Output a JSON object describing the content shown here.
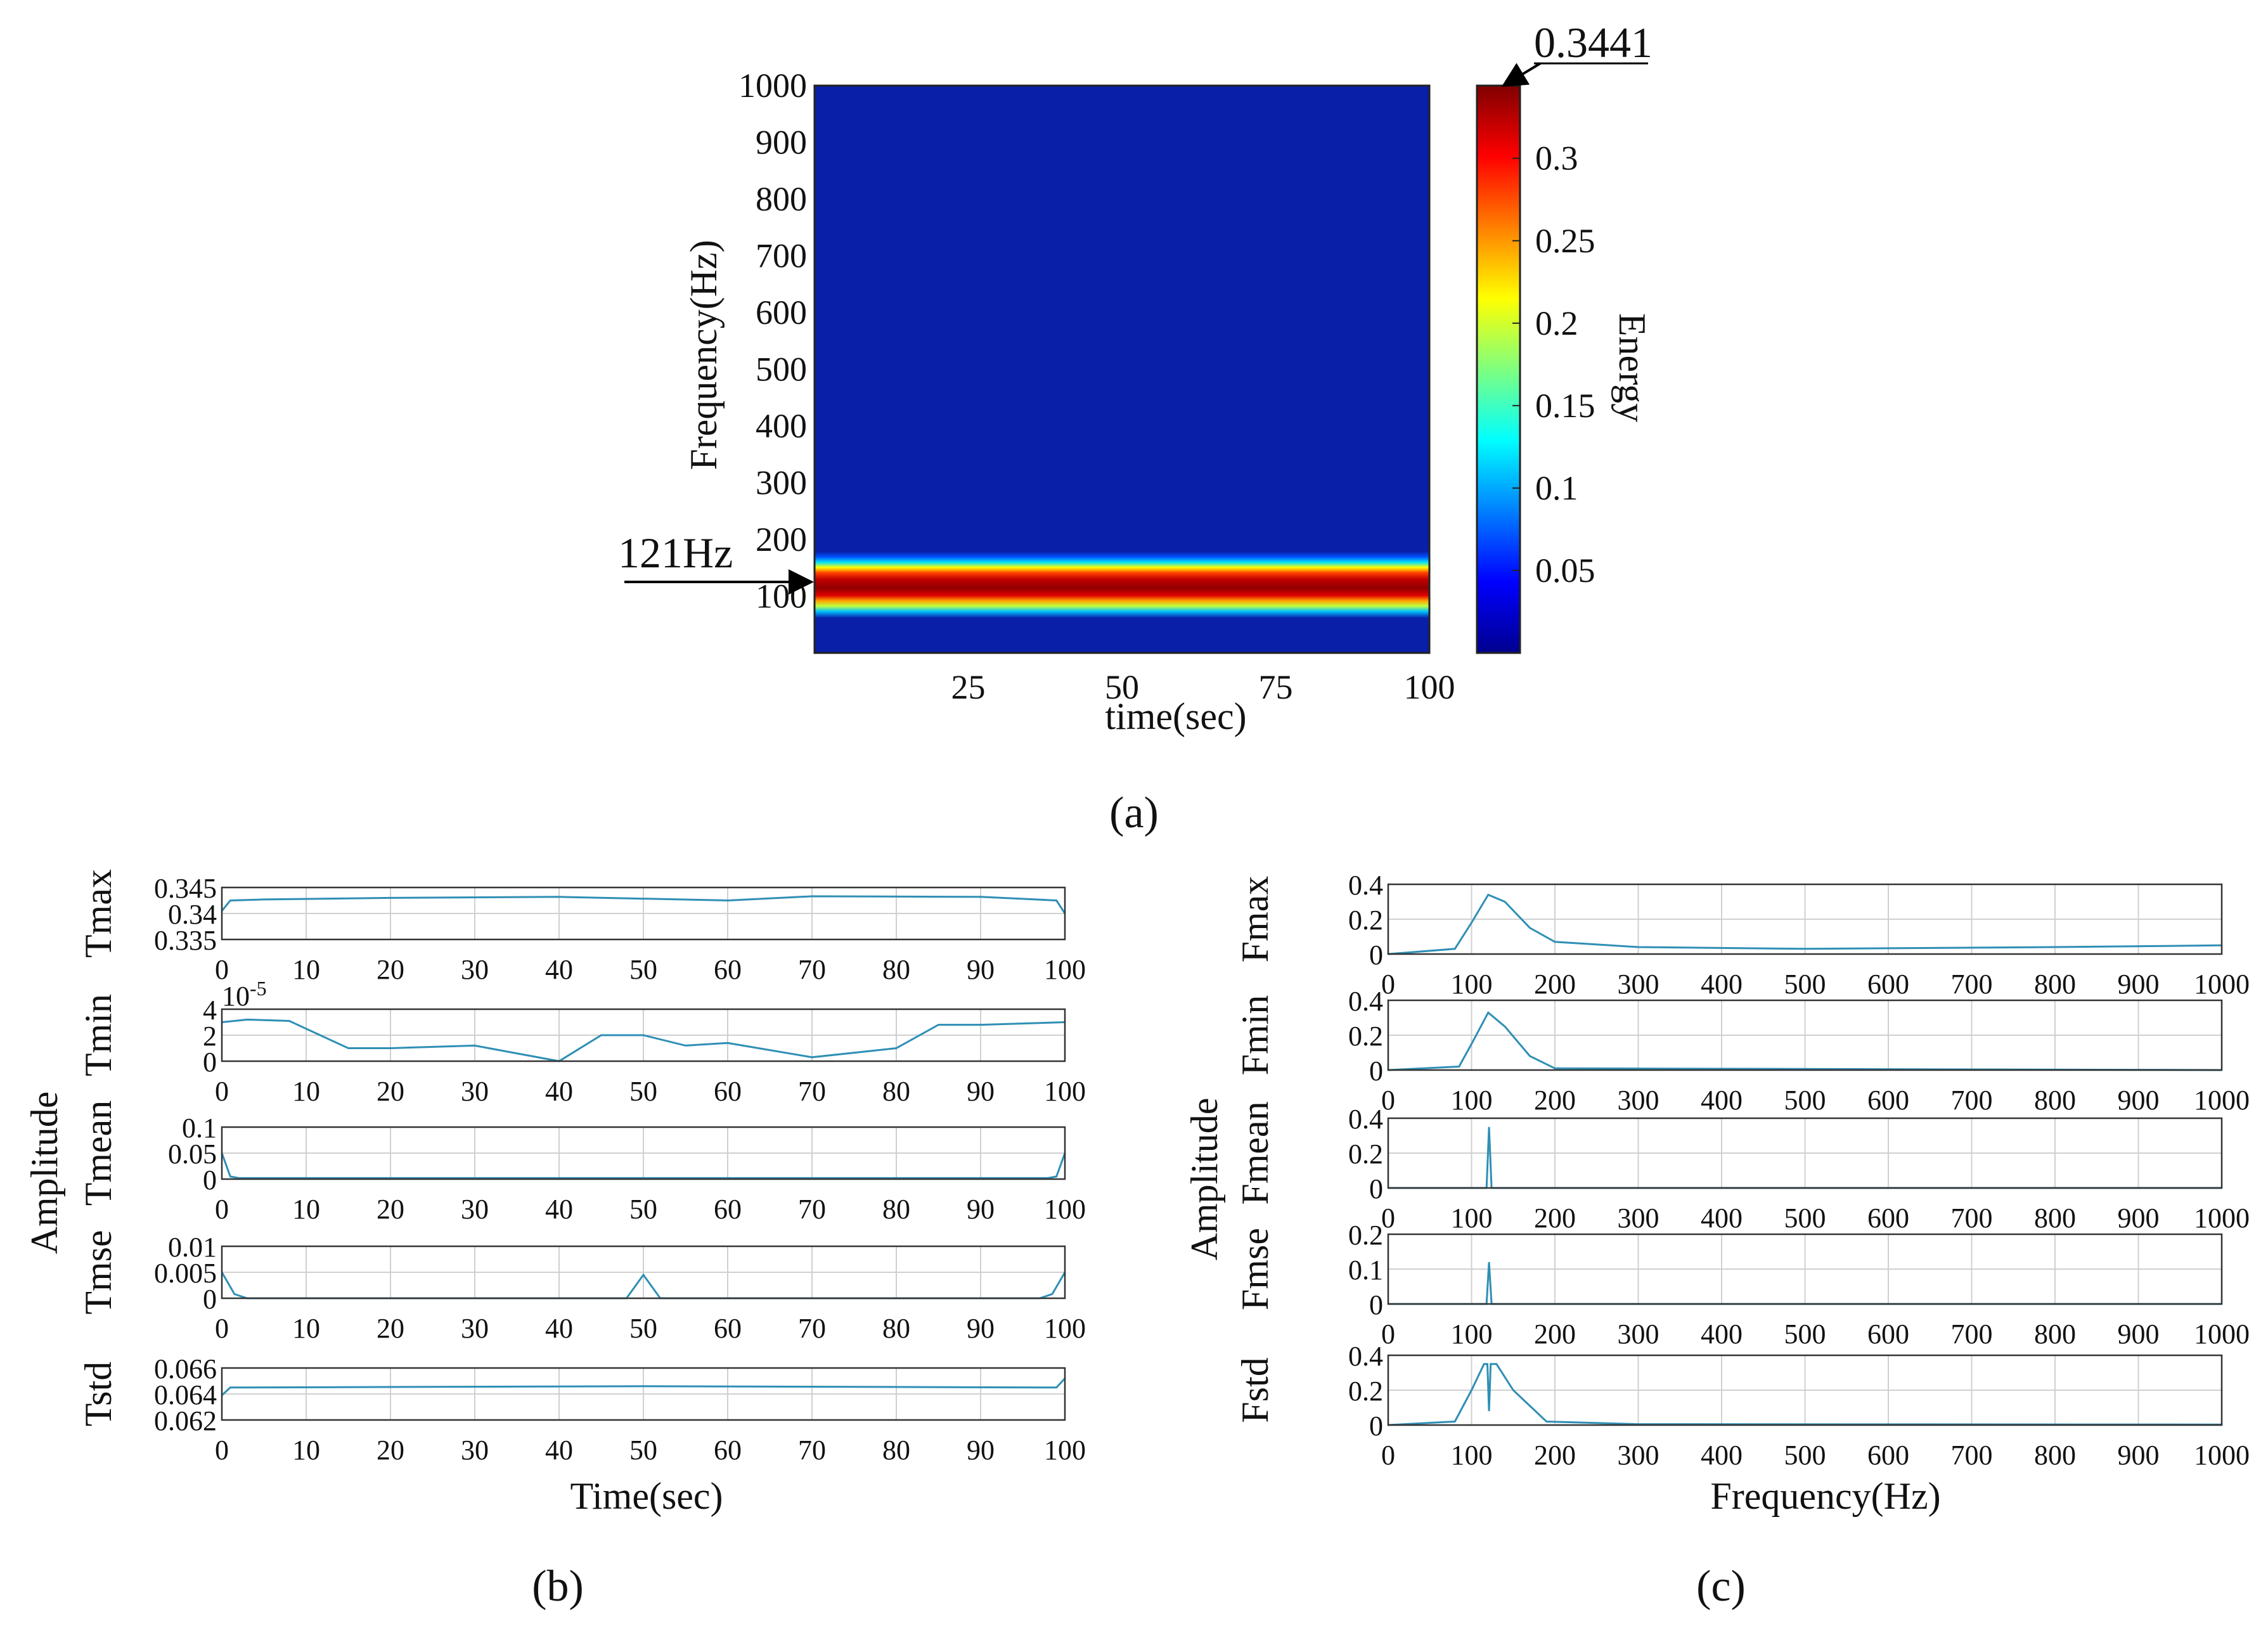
{
  "colors": {
    "line": "#2f8fb5",
    "grid": "#d0d0d0",
    "axis": "#333333",
    "background_blue": "#0a1fa8"
  },
  "chart_data": [
    {
      "id": "a",
      "type": "heatmap",
      "caption": "(a)",
      "xlabel": "time(sec)",
      "ylabel": "Frequency(Hz)",
      "xticks": [
        "25",
        "50",
        "75",
        "100"
      ],
      "yticks": [
        "100",
        "200",
        "300",
        "400",
        "500",
        "600",
        "700",
        "800",
        "900",
        "1000"
      ],
      "xlim": [
        0,
        100
      ],
      "ylim": [
        0,
        1000
      ],
      "band_center_hz": 121,
      "band_annotation": "121Hz",
      "colorbar": {
        "label": "Energy",
        "max_annotation": "0.3441",
        "max_value": 0.3441,
        "min_value": 0,
        "ticks": [
          "0.05",
          "0.1",
          "0.15",
          "0.2",
          "0.25",
          "0.3"
        ]
      }
    },
    {
      "id": "b",
      "type": "line",
      "caption": "(b)",
      "xlabel": "Time(sec)",
      "ylabel": "Amplitude",
      "xticks": [
        "0",
        "10",
        "20",
        "30",
        "40",
        "50",
        "60",
        "70",
        "80",
        "90",
        "100"
      ],
      "xlim": [
        0,
        100
      ],
      "panels": [
        {
          "name": "Tmax",
          "yticks": [
            "0.345",
            "0.34",
            "0.335"
          ],
          "ylim": [
            0.335,
            0.345
          ],
          "description_points": [
            [
              0,
              0.3405
            ],
            [
              1,
              0.3425
            ],
            [
              5,
              0.3427
            ],
            [
              20,
              0.343
            ],
            [
              40,
              0.3432
            ],
            [
              60,
              0.3425
            ],
            [
              70,
              0.3433
            ],
            [
              90,
              0.3432
            ],
            [
              99,
              0.3425
            ],
            [
              100,
              0.34
            ]
          ]
        },
        {
          "name": "Tmin",
          "yticks": [
            "4",
            "2",
            "0"
          ],
          "exponent": "10-5",
          "ylim": [
            0,
            4
          ],
          "description_points": [
            [
              0,
              3
            ],
            [
              3,
              3.2
            ],
            [
              8,
              3.1
            ],
            [
              10,
              2.5
            ],
            [
              15,
              1
            ],
            [
              20,
              1
            ],
            [
              30,
              1.2
            ],
            [
              40,
              0
            ],
            [
              45,
              2
            ],
            [
              50,
              2
            ],
            [
              55,
              1.2
            ],
            [
              60,
              1.4
            ],
            [
              70,
              0.3
            ],
            [
              80,
              1
            ],
            [
              85,
              2.8
            ],
            [
              90,
              2.8
            ],
            [
              100,
              3
            ]
          ]
        },
        {
          "name": "Tmean",
          "yticks": [
            "0.1",
            "0.05",
            "0"
          ],
          "ylim": [
            0,
            0.1
          ],
          "description_points": [
            [
              0,
              0.05
            ],
            [
              1,
              0.005
            ],
            [
              2,
              0.002
            ],
            [
              98,
              0.002
            ],
            [
              99,
              0.005
            ],
            [
              100,
              0.05
            ]
          ]
        },
        {
          "name": "Tmse",
          "yticks": [
            "0.01",
            "0.005",
            "0"
          ],
          "ylim": [
            0,
            0.01
          ],
          "description_points": [
            [
              0,
              0.005
            ],
            [
              1.5,
              0.0008
            ],
            [
              3,
              0
            ],
            [
              48,
              0
            ],
            [
              50,
              0.0045
            ],
            [
              52,
              0
            ],
            [
              97,
              0
            ],
            [
              98.5,
              0.0008
            ],
            [
              100,
              0.005
            ]
          ]
        },
        {
          "name": "Tstd",
          "yticks": [
            "0.066",
            "0.064",
            "0.062"
          ],
          "ylim": [
            0.062,
            0.066
          ],
          "description_points": [
            [
              0,
              0.0639
            ],
            [
              1,
              0.0645
            ],
            [
              50,
              0.0646
            ],
            [
              99,
              0.0645
            ],
            [
              100,
              0.0652
            ]
          ]
        }
      ]
    },
    {
      "id": "c",
      "type": "line",
      "caption": "(c)",
      "xlabel": "Frequency(Hz)",
      "ylabel": "Amplitude",
      "xticks": [
        "0",
        "100",
        "200",
        "300",
        "400",
        "500",
        "600",
        "700",
        "800",
        "900",
        "1000"
      ],
      "xlim": [
        0,
        1000
      ],
      "panels": [
        {
          "name": "Fmax",
          "yticks": [
            "0.4",
            "0.2",
            "0"
          ],
          "ylim": [
            0,
            0.4
          ],
          "description_points": [
            [
              0,
              0
            ],
            [
              80,
              0.03
            ],
            [
              100,
              0.18
            ],
            [
              120,
              0.34
            ],
            [
              140,
              0.3
            ],
            [
              170,
              0.15
            ],
            [
              200,
              0.07
            ],
            [
              300,
              0.04
            ],
            [
              500,
              0.03
            ],
            [
              800,
              0.04
            ],
            [
              1000,
              0.05
            ]
          ]
        },
        {
          "name": "Fmin",
          "yticks": [
            "0.4",
            "0.2",
            "0"
          ],
          "ylim": [
            0,
            0.4
          ],
          "description_points": [
            [
              0,
              0
            ],
            [
              85,
              0.02
            ],
            [
              100,
              0.15
            ],
            [
              120,
              0.33
            ],
            [
              140,
              0.25
            ],
            [
              170,
              0.08
            ],
            [
              200,
              0.01
            ],
            [
              1000,
              0
            ]
          ]
        },
        {
          "name": "Fmean",
          "yticks": [
            "0.4",
            "0.2",
            "0"
          ],
          "ylim": [
            0,
            0.4
          ],
          "description_points": [
            [
              0,
              0
            ],
            [
              118,
              0
            ],
            [
              121,
              0.35
            ],
            [
              124,
              0
            ],
            [
              1000,
              0
            ]
          ]
        },
        {
          "name": "Fmse",
          "yticks": [
            "0.2",
            "0.1",
            "0"
          ],
          "ylim": [
            0,
            0.2
          ],
          "description_points": [
            [
              0,
              0
            ],
            [
              118,
              0
            ],
            [
              121,
              0.12
            ],
            [
              124,
              0
            ],
            [
              1000,
              0
            ]
          ]
        },
        {
          "name": "Fstd",
          "yticks": [
            "0.4",
            "0.2",
            "0"
          ],
          "ylim": [
            0,
            0.4
          ],
          "description_points": [
            [
              0,
              0
            ],
            [
              80,
              0.02
            ],
            [
              100,
              0.2
            ],
            [
              115,
              0.35
            ],
            [
              119,
              0.35
            ],
            [
              121,
              0.08
            ],
            [
              123,
              0.35
            ],
            [
              130,
              0.35
            ],
            [
              150,
              0.2
            ],
            [
              190,
              0.02
            ],
            [
              300,
              0.005
            ],
            [
              1000,
              0.003
            ]
          ]
        }
      ]
    }
  ]
}
